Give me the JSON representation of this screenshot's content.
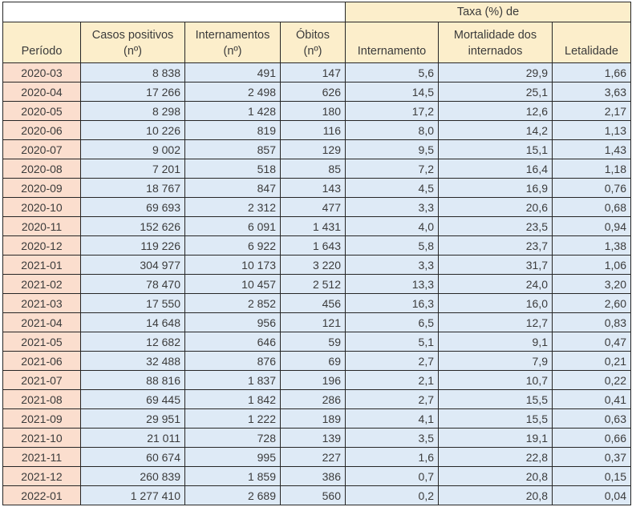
{
  "colors": {
    "header_fill": "#FCEECB",
    "period_fill": "#FBDECE",
    "value_fill": "#DEEAF6",
    "border": "#262626",
    "text": "#3B3B3B"
  },
  "table": {
    "group_header": "Taxa (%) de",
    "columns": [
      {
        "line1": "Período",
        "line2": ""
      },
      {
        "line1": "Casos positivos",
        "line2": "(nº)"
      },
      {
        "line1": "Internamentos",
        "line2": "(nº)"
      },
      {
        "line1": "Óbitos",
        "line2": "(nº)"
      },
      {
        "line1": "Internamento",
        "line2": ""
      },
      {
        "line1": "Mortalidade dos",
        "line2": "internados"
      },
      {
        "line1": "Letalidade",
        "line2": ""
      }
    ],
    "rows": [
      {
        "period": "2020-03",
        "cases": "8 838",
        "hospitalizations": "491",
        "deaths": "147",
        "rate_internamento": "5,6",
        "rate_mortalidade": "29,9",
        "rate_letalidade": "1,66"
      },
      {
        "period": "2020-04",
        "cases": "17 266",
        "hospitalizations": "2 498",
        "deaths": "626",
        "rate_internamento": "14,5",
        "rate_mortalidade": "25,1",
        "rate_letalidade": "3,63"
      },
      {
        "period": "2020-05",
        "cases": "8 298",
        "hospitalizations": "1 428",
        "deaths": "180",
        "rate_internamento": "17,2",
        "rate_mortalidade": "12,6",
        "rate_letalidade": "2,17"
      },
      {
        "period": "2020-06",
        "cases": "10 226",
        "hospitalizations": "819",
        "deaths": "116",
        "rate_internamento": "8,0",
        "rate_mortalidade": "14,2",
        "rate_letalidade": "1,13"
      },
      {
        "period": "2020-07",
        "cases": "9 002",
        "hospitalizations": "857",
        "deaths": "129",
        "rate_internamento": "9,5",
        "rate_mortalidade": "15,1",
        "rate_letalidade": "1,43"
      },
      {
        "period": "2020-08",
        "cases": "7 201",
        "hospitalizations": "518",
        "deaths": "85",
        "rate_internamento": "7,2",
        "rate_mortalidade": "16,4",
        "rate_letalidade": "1,18"
      },
      {
        "period": "2020-09",
        "cases": "18 767",
        "hospitalizations": "847",
        "deaths": "143",
        "rate_internamento": "4,5",
        "rate_mortalidade": "16,9",
        "rate_letalidade": "0,76"
      },
      {
        "period": "2020-10",
        "cases": "69 693",
        "hospitalizations": "2 312",
        "deaths": "477",
        "rate_internamento": "3,3",
        "rate_mortalidade": "20,6",
        "rate_letalidade": "0,68"
      },
      {
        "period": "2020-11",
        "cases": "152 626",
        "hospitalizations": "6 091",
        "deaths": "1 431",
        "rate_internamento": "4,0",
        "rate_mortalidade": "23,5",
        "rate_letalidade": "0,94"
      },
      {
        "period": "2020-12",
        "cases": "119 226",
        "hospitalizations": "6 922",
        "deaths": "1 643",
        "rate_internamento": "5,8",
        "rate_mortalidade": "23,7",
        "rate_letalidade": "1,38"
      },
      {
        "period": "2021-01",
        "cases": "304 977",
        "hospitalizations": "10 173",
        "deaths": "3 220",
        "rate_internamento": "3,3",
        "rate_mortalidade": "31,7",
        "rate_letalidade": "1,06"
      },
      {
        "period": "2021-02",
        "cases": "78 470",
        "hospitalizations": "10 457",
        "deaths": "2 512",
        "rate_internamento": "13,3",
        "rate_mortalidade": "24,0",
        "rate_letalidade": "3,20"
      },
      {
        "period": "2021-03",
        "cases": "17 550",
        "hospitalizations": "2 852",
        "deaths": "456",
        "rate_internamento": "16,3",
        "rate_mortalidade": "16,0",
        "rate_letalidade": "2,60"
      },
      {
        "period": "2021-04",
        "cases": "14 648",
        "hospitalizations": "956",
        "deaths": "121",
        "rate_internamento": "6,5",
        "rate_mortalidade": "12,7",
        "rate_letalidade": "0,83"
      },
      {
        "period": "2021-05",
        "cases": "12 682",
        "hospitalizations": "646",
        "deaths": "59",
        "rate_internamento": "5,1",
        "rate_mortalidade": "9,1",
        "rate_letalidade": "0,47"
      },
      {
        "period": "2021-06",
        "cases": "32 488",
        "hospitalizations": "876",
        "deaths": "69",
        "rate_internamento": "2,7",
        "rate_mortalidade": "7,9",
        "rate_letalidade": "0,21"
      },
      {
        "period": "2021-07",
        "cases": "88 816",
        "hospitalizations": "1 837",
        "deaths": "196",
        "rate_internamento": "2,1",
        "rate_mortalidade": "10,7",
        "rate_letalidade": "0,22"
      },
      {
        "period": "2021-08",
        "cases": "69 445",
        "hospitalizations": "1 842",
        "deaths": "286",
        "rate_internamento": "2,7",
        "rate_mortalidade": "15,5",
        "rate_letalidade": "0,41"
      },
      {
        "period": "2021-09",
        "cases": "29 951",
        "hospitalizations": "1 222",
        "deaths": "189",
        "rate_internamento": "4,1",
        "rate_mortalidade": "15,5",
        "rate_letalidade": "0,63"
      },
      {
        "period": "2021-10",
        "cases": "21 011",
        "hospitalizations": "728",
        "deaths": "139",
        "rate_internamento": "3,5",
        "rate_mortalidade": "19,1",
        "rate_letalidade": "0,66"
      },
      {
        "period": "2021-11",
        "cases": "60 674",
        "hospitalizations": "995",
        "deaths": "227",
        "rate_internamento": "1,6",
        "rate_mortalidade": "22,8",
        "rate_letalidade": "0,37"
      },
      {
        "period": "2021-12",
        "cases": "260 839",
        "hospitalizations": "1 859",
        "deaths": "386",
        "rate_internamento": "0,7",
        "rate_mortalidade": "20,8",
        "rate_letalidade": "0,15"
      },
      {
        "period": "2022-01",
        "cases": "1 277 410",
        "hospitalizations": "2 689",
        "deaths": "560",
        "rate_internamento": "0,2",
        "rate_mortalidade": "20,8",
        "rate_letalidade": "0,04"
      }
    ]
  }
}
